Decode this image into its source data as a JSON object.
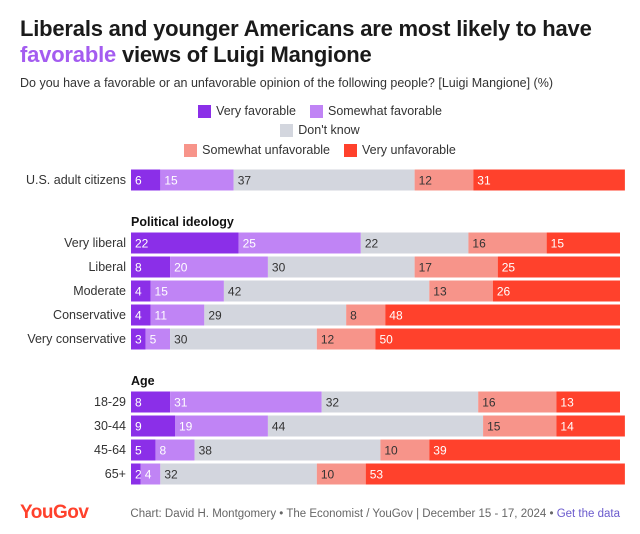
{
  "title_part1": "Liberals and younger Americans are most likely to have",
  "title_highlight": "favorable",
  "title_part2": " views of Luigi Mangione",
  "subtitle": "Do you have a favorable or an unfavorable opinion of the following people? [Luigi Mangione] (%)",
  "logo": "YouGov",
  "footer_text": "Chart: David H. Montgomery • The Economist / YouGov | December 15 - 17, 2024 • ",
  "footer_link": "Get the data",
  "legend": [
    {
      "label": "Very favorable",
      "color": "#8b2fe8"
    },
    {
      "label": "Somewhat favorable",
      "color": "#c084f5"
    },
    {
      "label": "Don't know",
      "color": "#d3d6de"
    },
    {
      "label": "Somewhat unfavorable",
      "color": "#f7948a"
    },
    {
      "label": "Very unfavorable",
      "color": "#ff412c"
    }
  ],
  "chart_data": {
    "type": "bar",
    "orientation": "horizontal",
    "stacked": true,
    "series": [
      {
        "name": "Very favorable",
        "color": "#8b2fe8"
      },
      {
        "name": "Somewhat favorable",
        "color": "#c084f5"
      },
      {
        "name": "Don't know",
        "color": "#d3d6de"
      },
      {
        "name": "Somewhat unfavorable",
        "color": "#f7948a"
      },
      {
        "name": "Very unfavorable",
        "color": "#ff412c"
      }
    ],
    "groups": [
      {
        "label": "",
        "rows": [
          {
            "label": "U.S. adult citizens",
            "values": [
              6,
              15,
              37,
              12,
              31
            ]
          }
        ]
      },
      {
        "label": "Political ideology",
        "rows": [
          {
            "label": "Very liberal",
            "values": [
              22,
              25,
              22,
              16,
              15
            ]
          },
          {
            "label": "Liberal",
            "values": [
              8,
              20,
              30,
              17,
              25
            ]
          },
          {
            "label": "Moderate",
            "values": [
              4,
              15,
              42,
              13,
              26
            ]
          },
          {
            "label": "Conservative",
            "values": [
              4,
              11,
              29,
              8,
              48
            ]
          },
          {
            "label": "Very conservative",
            "values": [
              3,
              5,
              30,
              12,
              50
            ]
          }
        ]
      },
      {
        "label": "Age",
        "rows": [
          {
            "label": "18-29",
            "values": [
              8,
              31,
              32,
              16,
              13
            ]
          },
          {
            "label": "30-44",
            "values": [
              9,
              19,
              44,
              15,
              14
            ]
          },
          {
            "label": "45-64",
            "values": [
              5,
              8,
              38,
              10,
              39
            ]
          },
          {
            "label": "65+",
            "values": [
              2,
              4,
              32,
              10,
              53
            ]
          }
        ]
      }
    ],
    "xlim": [
      0,
      100
    ],
    "legend_position": "top-center"
  }
}
